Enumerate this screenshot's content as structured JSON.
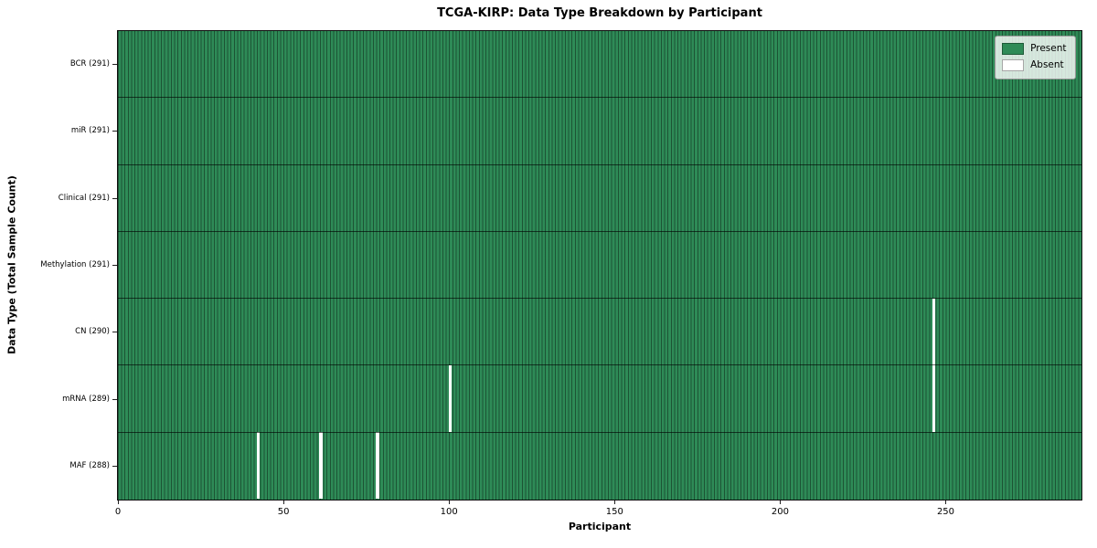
{
  "chart_data": {
    "type": "heatmap",
    "title": "TCGA-KIRP: Data Type Breakdown by Participant",
    "xlabel": "Participant",
    "ylabel": "Data Type (Total Sample Count)",
    "x_ticks": [
      0,
      50,
      100,
      150,
      200,
      250
    ],
    "x_range": [
      0,
      291
    ],
    "total_participants": 291,
    "rows": [
      {
        "label": "BCR (291)",
        "data_type": "BCR",
        "present_count": 291,
        "absent_participants": []
      },
      {
        "label": "miR (291)",
        "data_type": "miR",
        "present_count": 291,
        "absent_participants": []
      },
      {
        "label": "Clinical (291)",
        "data_type": "Clinical",
        "present_count": 291,
        "absent_participants": []
      },
      {
        "label": "Methylation (291)",
        "data_type": "Methylation",
        "present_count": 291,
        "absent_participants": []
      },
      {
        "label": "CN (290)",
        "data_type": "CN",
        "present_count": 290,
        "absent_participants": [
          246
        ]
      },
      {
        "label": "mRNA (289)",
        "data_type": "mRNA",
        "present_count": 289,
        "absent_participants": [
          100,
          246
        ]
      },
      {
        "label": "MAF (288)",
        "data_type": "MAF",
        "present_count": 288,
        "absent_participants": [
          42,
          61,
          78
        ]
      }
    ],
    "legend": [
      {
        "label": "Present",
        "color": "#2e8b57"
      },
      {
        "label": "Absent",
        "color": "#ffffff"
      }
    ],
    "legend_position": "upper right",
    "grid": false,
    "colors": {
      "present": "#2e8b57",
      "absent": "#ffffff",
      "cell_edge": "rgba(0,0,0,0.40)",
      "row_divider": "rgba(0,0,0,0.62)"
    }
  }
}
